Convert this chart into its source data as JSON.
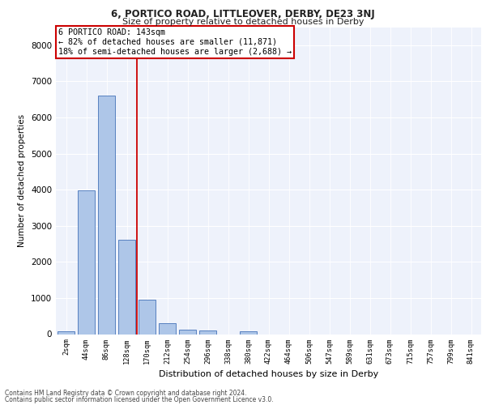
{
  "title_line1": "6, PORTICO ROAD, LITTLEOVER, DERBY, DE23 3NJ",
  "title_line2": "Size of property relative to detached houses in Derby",
  "xlabel": "Distribution of detached houses by size in Derby",
  "ylabel": "Number of detached properties",
  "footnote1": "Contains HM Land Registry data © Crown copyright and database right 2024.",
  "footnote2": "Contains public sector information licensed under the Open Government Licence v3.0.",
  "annotation_line1": "6 PORTICO ROAD: 143sqm",
  "annotation_line2": "← 82% of detached houses are smaller (11,871)",
  "annotation_line3": "18% of semi-detached houses are larger (2,688) →",
  "bar_labels": [
    "2sqm",
    "44sqm",
    "86sqm",
    "128sqm",
    "170sqm",
    "212sqm",
    "254sqm",
    "296sqm",
    "338sqm",
    "380sqm",
    "422sqm",
    "464sqm",
    "506sqm",
    "547sqm",
    "589sqm",
    "631sqm",
    "673sqm",
    "715sqm",
    "757sqm",
    "799sqm",
    "841sqm"
  ],
  "bar_values": [
    80,
    3980,
    6600,
    2620,
    960,
    310,
    130,
    90,
    0,
    80,
    0,
    0,
    0,
    0,
    0,
    0,
    0,
    0,
    0,
    0,
    0
  ],
  "bar_color": "#aec6e8",
  "bar_edge_color": "#4472b8",
  "vline_x": 3.5,
  "vline_color": "#cc0000",
  "ylim": [
    0,
    8500
  ],
  "yticks": [
    0,
    1000,
    2000,
    3000,
    4000,
    5000,
    6000,
    7000,
    8000
  ],
  "bg_color": "#eef2fb",
  "grid_color": "#ffffff",
  "annotation_box_color": "#ffffff",
  "annotation_box_edgecolor": "#cc0000",
  "fig_width": 6.0,
  "fig_height": 5.0,
  "dpi": 100
}
